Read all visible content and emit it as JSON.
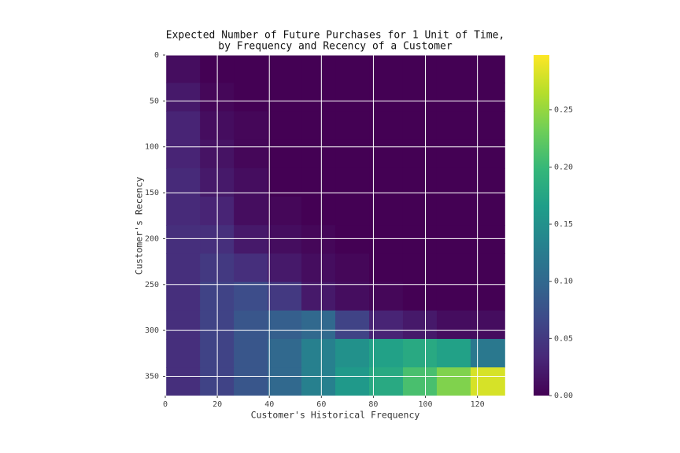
{
  "chart_data": {
    "type": "heatmap",
    "title": [
      "Expected Number of Future Purchases for 1 Unit of Time,",
      "by Frequency and Recency of a Customer"
    ],
    "xlabel": "Customer's Historical Frequency",
    "ylabel": "Customer's Recency",
    "colormap": "viridis",
    "grid": true,
    "x": [
      7,
      20,
      33,
      46,
      59,
      72,
      85,
      98,
      111,
      124
    ],
    "y": [
      15,
      46,
      77,
      108,
      139,
      170,
      201,
      232,
      263,
      294,
      325,
      356
    ],
    "values": [
      [
        0.01,
        0,
        0,
        0,
        0,
        0,
        0,
        0,
        0,
        0
      ],
      [
        0.02,
        0.005,
        0,
        0,
        0,
        0,
        0,
        0,
        0,
        0
      ],
      [
        0.03,
        0.01,
        0.005,
        0,
        0,
        0,
        0,
        0,
        0,
        0
      ],
      [
        0.03,
        0.015,
        0.005,
        0,
        0,
        0,
        0,
        0,
        0,
        0
      ],
      [
        0.035,
        0.02,
        0.01,
        0,
        0,
        0,
        0,
        0,
        0,
        0
      ],
      [
        0.035,
        0.03,
        0.01,
        0.005,
        0,
        0,
        0,
        0,
        0,
        0
      ],
      [
        0.04,
        0.04,
        0.02,
        0.01,
        0.005,
        0,
        0,
        0,
        0,
        0
      ],
      [
        0.04,
        0.05,
        0.04,
        0.02,
        0.01,
        0.005,
        0,
        0,
        0,
        0
      ],
      [
        0.04,
        0.06,
        0.07,
        0.05,
        0.02,
        0.01,
        0.005,
        0,
        0,
        0
      ],
      [
        0.04,
        0.06,
        0.08,
        0.09,
        0.1,
        0.06,
        0.03,
        0.02,
        0.01,
        0.01
      ],
      [
        0.04,
        0.06,
        0.08,
        0.1,
        0.13,
        0.15,
        0.17,
        0.18,
        0.17,
        0.12
      ],
      [
        0.04,
        0.06,
        0.08,
        0.1,
        0.13,
        0.16,
        0.18,
        0.21,
        0.24,
        0.28
      ]
    ],
    "xlim": [
      0,
      131
    ],
    "ylim": [
      0,
      371
    ],
    "y_inverted": true,
    "xticks": [
      0,
      20,
      40,
      60,
      80,
      100,
      120
    ],
    "yticks": [
      0,
      50,
      100,
      150,
      200,
      250,
      300,
      350
    ],
    "clim": [
      0,
      0.298
    ],
    "cticks": [
      {
        "value": 0,
        "label": "0.00"
      },
      {
        "value": 0.05,
        "label": "0.05"
      },
      {
        "value": 0.1,
        "label": "0.10"
      },
      {
        "value": 0.15,
        "label": "0.15"
      },
      {
        "value": 0.2,
        "label": "0.20"
      },
      {
        "value": 0.25,
        "label": "0.25"
      }
    ]
  }
}
